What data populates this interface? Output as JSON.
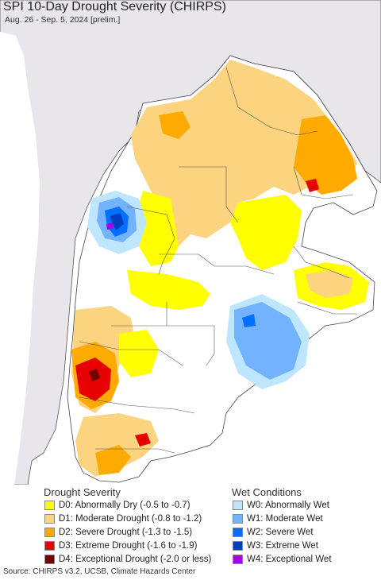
{
  "title": "SPI 10-Day Drought Severity (CHIRPS)",
  "subtitle": "Aug. 26 - Sep. 5, 2024 [prelim.]",
  "legend": {
    "drought_heading": "Drought Severity",
    "wet_heading": "Wet Conditions",
    "drought": [
      {
        "label": "D0: Abnormally Dry (-0.5 to -0.7)",
        "color": "#ffff00"
      },
      {
        "label": "D1: Moderate Drought (-0.8 to -1.2)",
        "color": "#fcd37f"
      },
      {
        "label": "D2: Severe Drought (-1.3 to -1.5)",
        "color": "#ffaa00"
      },
      {
        "label": "D3: Extreme Drought (-1.6 to -1.9)",
        "color": "#e60000"
      },
      {
        "label": "D4: Exceptional Drought (-2.0 or less)",
        "color": "#730000"
      }
    ],
    "wet": [
      {
        "label": "W0: Abnormally Wet",
        "color": "#bfe6ff"
      },
      {
        "label": "W1: Moderate Wet",
        "color": "#73b2ff"
      },
      {
        "label": "W2: Severe Wet",
        "color": "#0070ff"
      },
      {
        "label": "W3: Extreme Wet",
        "color": "#0040c0"
      },
      {
        "label": "W4: Exceptional Wet",
        "color": "#a800e6"
      }
    ]
  },
  "source": "Source: CHIRPS v3.2, UCSB, Climate Hazards Center",
  "colors": {
    "ocean": "#ffffff",
    "outside_land": "#e6e6e6",
    "border": "#444444"
  }
}
